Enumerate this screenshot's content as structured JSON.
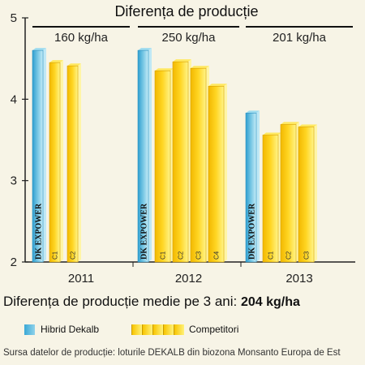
{
  "summary": {
    "label": "Diferența de producție medie pe 3 ani:",
    "value": "204 kg/ha"
  },
  "legend": {
    "hybrid": "Hibrid Dekalb",
    "competitors": "Competitori"
  },
  "source": "Sursa datelor de producție: loturile DEKALB din biozona Monsanto Europa de Est",
  "colors": {
    "hybrid": "#3aa8d6",
    "competitor": "#f7c400",
    "background": "#f7f4e6"
  },
  "chart_data": {
    "type": "bar",
    "title": "Diferența de producție",
    "ylim": [
      2,
      5
    ],
    "yticks": [
      2,
      3,
      4,
      5
    ],
    "grid": false,
    "legend_position": "bottom",
    "groups": [
      {
        "year": "2011",
        "difference": "160 kg/ha",
        "bars": [
          {
            "label": "DK EXPOWER",
            "value": 4.6,
            "kind": "hybrid"
          },
          {
            "label": "C1",
            "value": 4.45,
            "kind": "competitor"
          },
          {
            "label": "C2",
            "value": 4.41,
            "kind": "competitor"
          }
        ]
      },
      {
        "year": "2012",
        "difference": "250 kg/ha",
        "bars": [
          {
            "label": "DK EXPOWER",
            "value": 4.6,
            "kind": "hybrid"
          },
          {
            "label": "C1",
            "value": 4.35,
            "kind": "competitor"
          },
          {
            "label": "C2",
            "value": 4.46,
            "kind": "competitor"
          },
          {
            "label": "C3",
            "value": 4.38,
            "kind": "competitor"
          },
          {
            "label": "C4",
            "value": 4.16,
            "kind": "competitor"
          }
        ]
      },
      {
        "year": "2013",
        "difference": "201 kg/ha",
        "bars": [
          {
            "label": "DK EXPOWER",
            "value": 3.83,
            "kind": "hybrid"
          },
          {
            "label": "C1",
            "value": 3.56,
            "kind": "competitor"
          },
          {
            "label": "C2",
            "value": 3.69,
            "kind": "competitor"
          },
          {
            "label": "C3",
            "value": 3.66,
            "kind": "competitor"
          }
        ]
      }
    ]
  }
}
